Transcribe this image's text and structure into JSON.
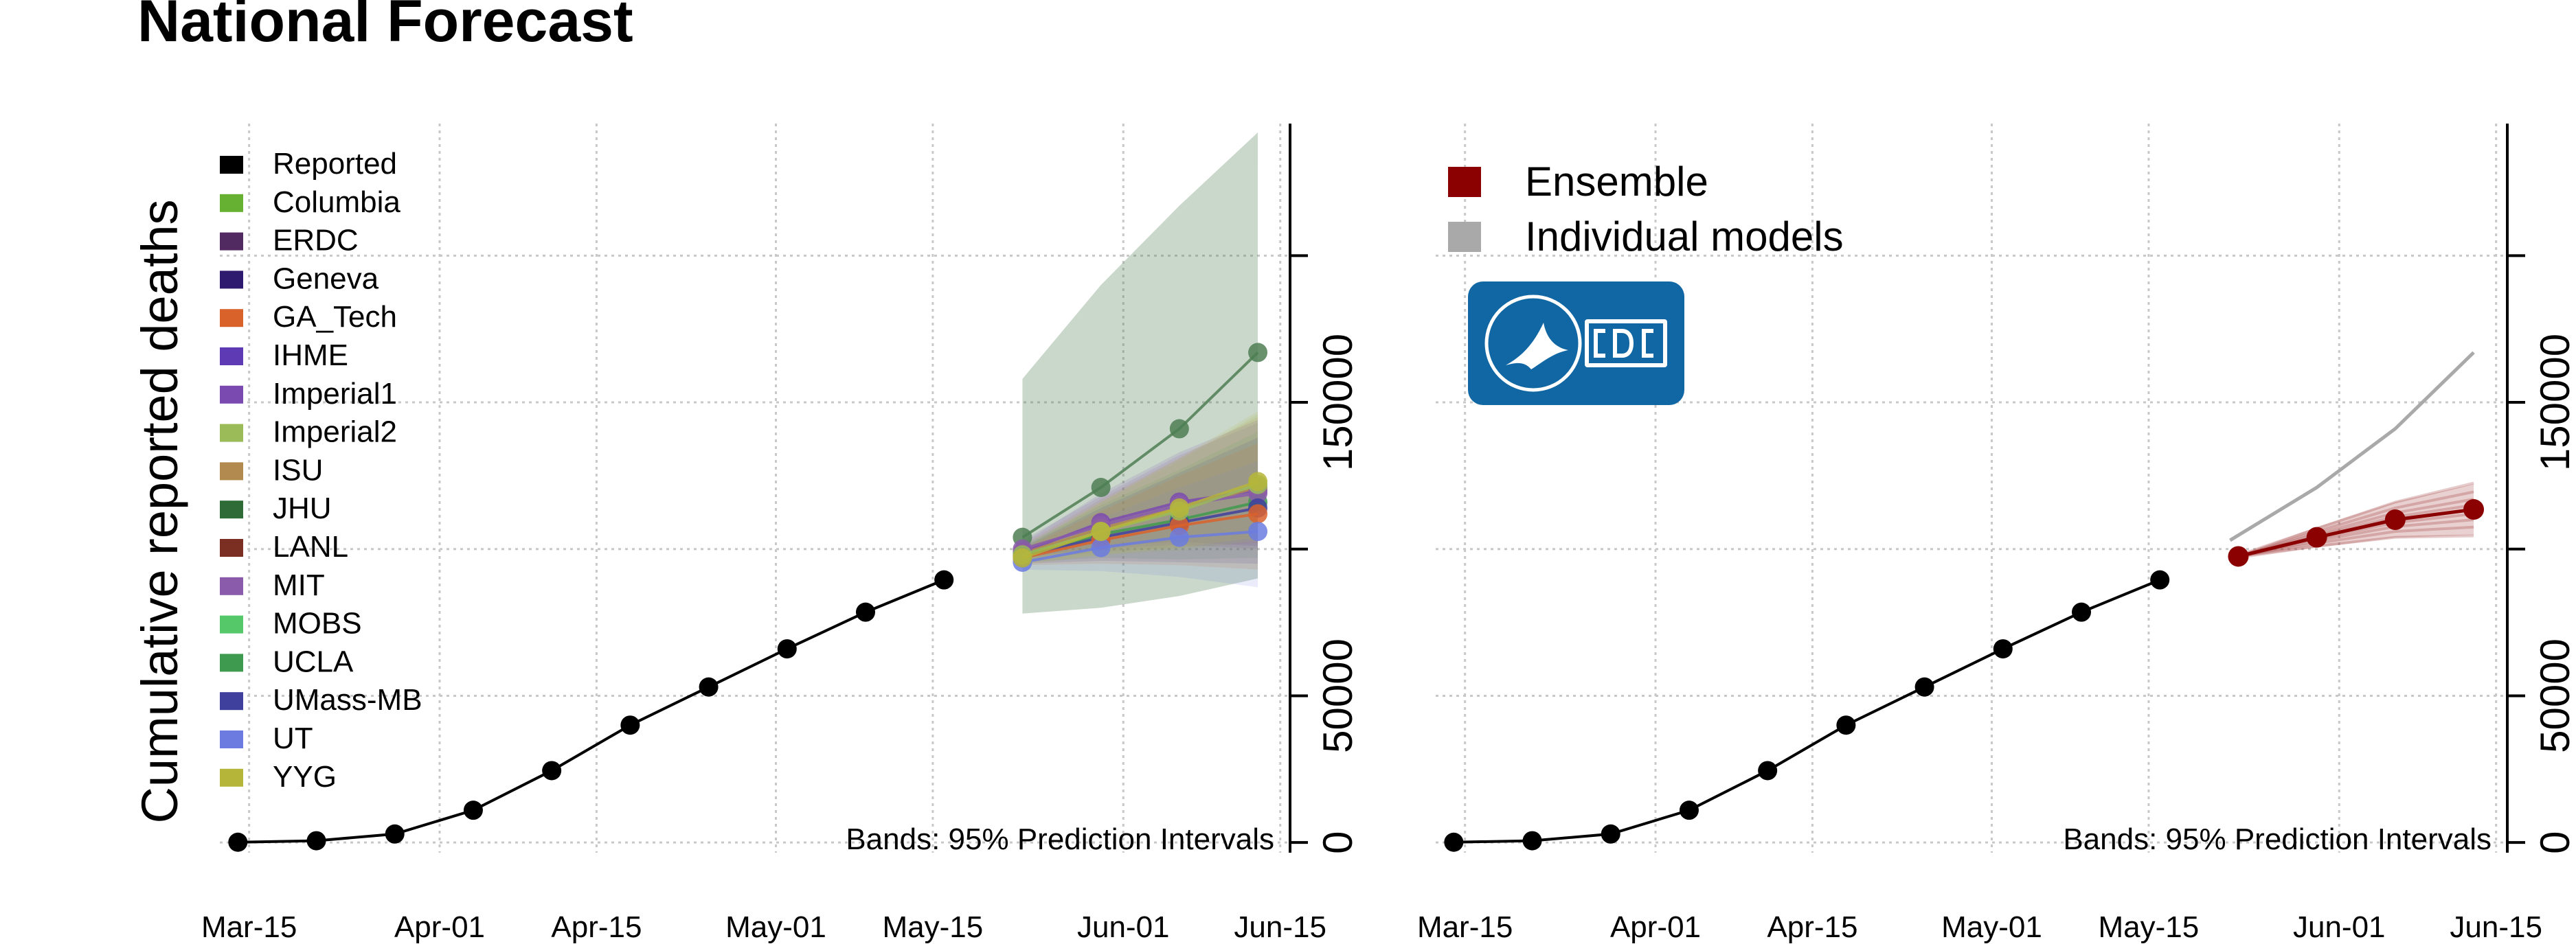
{
  "title": "National Forecast",
  "colors": {
    "reported": "#000000",
    "ensemble": "#8B0000",
    "individual": "#A9A9A9",
    "cdc_logo_bg": "#1167A3"
  },
  "chart_data": [
    {
      "type": "line",
      "ylabel": "Cumulative reported deaths",
      "note": "Bands: 95% Prediction Intervals",
      "x_axis": {
        "range": [
          "2020-03-13",
          "2020-06-16"
        ],
        "ticks": [
          "2020-03-15",
          "2020-04-01",
          "2020-04-15",
          "2020-05-01",
          "2020-05-15",
          "2020-06-01",
          "2020-06-15"
        ],
        "tick_labels": [
          "Mar-15",
          "Apr-01",
          "Apr-15",
          "May-01",
          "May-15",
          "Jun-01",
          "Jun-15"
        ]
      },
      "y_axis": {
        "range": [
          -3000,
          245000
        ],
        "ticks": [
          0,
          50000,
          100000,
          150000,
          200000
        ],
        "tick_labels": [
          "0",
          "50000",
          "",
          "150000",
          ""
        ],
        "position": "right"
      },
      "grid": true,
      "legend": {
        "placement": "top-left",
        "entries": [
          {
            "label": "Reported",
            "color": "#000000"
          },
          {
            "label": "Columbia",
            "color": "#66B032"
          },
          {
            "label": "ERDC",
            "color": "#522A62"
          },
          {
            "label": "Geneva",
            "color": "#2E1A6E"
          },
          {
            "label": "GA_Tech",
            "color": "#D9622B"
          },
          {
            "label": "IHME",
            "color": "#5E3BB4"
          },
          {
            "label": "Imperial1",
            "color": "#7B4AB0"
          },
          {
            "label": "Imperial2",
            "color": "#9BBB59"
          },
          {
            "label": "ISU",
            "color": "#B28A50"
          },
          {
            "label": "JHU",
            "color": "#2E6B36"
          },
          {
            "label": "LANL",
            "color": "#7B2E22"
          },
          {
            "label": "MIT",
            "color": "#8A5BAA"
          },
          {
            "label": "MOBS",
            "color": "#55C96A"
          },
          {
            "label": "UCLA",
            "color": "#3E9A4E"
          },
          {
            "label": "UMass-MB",
            "color": "#3F3F9E"
          },
          {
            "label": "UT",
            "color": "#6B7BE0"
          },
          {
            "label": "YYG",
            "color": "#B5B53A"
          }
        ]
      },
      "reported": {
        "x": [
          "2020-03-14",
          "2020-03-21",
          "2020-03-28",
          "2020-04-04",
          "2020-04-11",
          "2020-04-18",
          "2020-04-25",
          "2020-05-02",
          "2020-05-09",
          "2020-05-16"
        ],
        "y": [
          100,
          600,
          2900,
          11000,
          24500,
          40000,
          53000,
          66000,
          78500,
          89500
        ]
      },
      "forecast_x": [
        "2020-05-23",
        "2020-05-30",
        "2020-06-06",
        "2020-06-13"
      ],
      "series": [
        {
          "name": "JHU",
          "color": "#4E7E52",
          "values": [
            104000,
            121000,
            141000,
            167000
          ],
          "lower": [
            78000,
            80000,
            84000,
            90000
          ],
          "upper": [
            158000,
            190000,
            217000,
            260000
          ]
        },
        {
          "name": "Imperial1",
          "color": "#7B4AB0",
          "values": [
            99000,
            109000,
            116000,
            120000
          ]
        },
        {
          "name": "ISU",
          "color": "#B28A50",
          "values": [
            98500,
            107000,
            114000,
            121000
          ]
        },
        {
          "name": "UCLA",
          "color": "#3E9A4E",
          "values": [
            98000,
            105000,
            110000,
            116000
          ]
        },
        {
          "name": "MIT",
          "color": "#8A5BAA",
          "values": [
            100000,
            108000,
            115000,
            119000
          ]
        },
        {
          "name": "UMass-MB",
          "color": "#3F3F9E",
          "values": [
            97500,
            104000,
            109000,
            114000
          ]
        },
        {
          "name": "GA_Tech",
          "color": "#D9622B",
          "values": [
            97000,
            103000,
            108000,
            112000
          ]
        },
        {
          "name": "UT",
          "color": "#6B7BE0",
          "values": [
            95500,
            100500,
            104000,
            106000
          ]
        },
        {
          "name": "Imperial2",
          "color": "#9BBB59",
          "values": [
            98000,
            106000,
            113000,
            122000
          ]
        },
        {
          "name": "YYG",
          "color": "#B5B53A",
          "values": [
            97000,
            106000,
            114000,
            123000
          ]
        }
      ]
    },
    {
      "type": "line",
      "note": "Bands: 95% Prediction Intervals",
      "x_axis": {
        "range": [
          "2020-03-13",
          "2020-06-16"
        ],
        "ticks": [
          "2020-03-15",
          "2020-04-01",
          "2020-04-15",
          "2020-05-01",
          "2020-05-15",
          "2020-06-01",
          "2020-06-15"
        ],
        "tick_labels": [
          "Mar-15",
          "Apr-01",
          "Apr-15",
          "May-01",
          "May-15",
          "Jun-01",
          "Jun-15"
        ]
      },
      "y_axis": {
        "range": [
          -3000,
          245000
        ],
        "ticks": [
          0,
          50000,
          100000,
          150000,
          200000
        ],
        "tick_labels": [
          "0",
          "50000",
          "",
          "150000",
          ""
        ],
        "position": "right"
      },
      "grid": true,
      "legend": {
        "placement": "top-left",
        "entries": [
          {
            "label": "Ensemble",
            "color": "#8B0000"
          },
          {
            "label": "Individual models",
            "color": "#A9A9A9"
          }
        ]
      },
      "reported": {
        "x": [
          "2020-03-14",
          "2020-03-21",
          "2020-03-28",
          "2020-04-04",
          "2020-04-11",
          "2020-04-18",
          "2020-04-25",
          "2020-05-02",
          "2020-05-09",
          "2020-05-16"
        ],
        "y": [
          100,
          600,
          2900,
          11000,
          24500,
          40000,
          53000,
          66000,
          78500,
          89500
        ]
      },
      "ensemble": {
        "x": [
          "2020-05-23",
          "2020-05-30",
          "2020-06-06",
          "2020-06-13"
        ],
        "y": [
          97500,
          104000,
          110000,
          113500
        ]
      },
      "individual_models": [
        {
          "x": [
            "2020-05-23",
            "2020-05-30",
            "2020-06-06",
            "2020-06-13"
          ],
          "y": [
            104000,
            121000,
            141000,
            167000
          ]
        }
      ]
    }
  ]
}
